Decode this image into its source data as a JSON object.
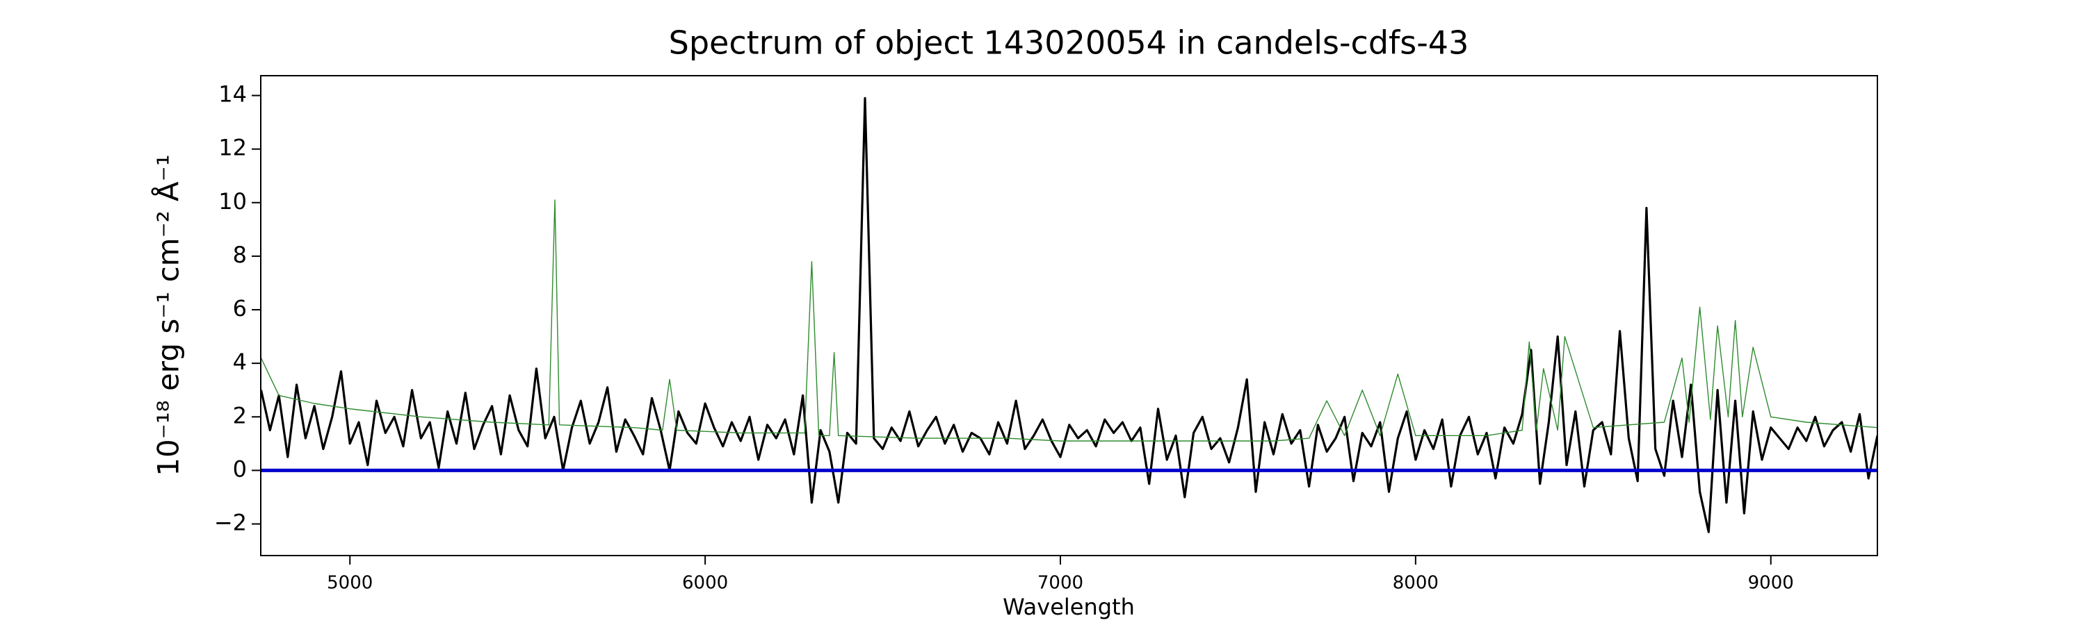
{
  "chart_data": {
    "type": "line",
    "title": "Spectrum of object 143020054 in candels-cdfs-43",
    "xlabel": "Wavelength",
    "ylabel": "10⁻¹⁸ erg s⁻¹ cm⁻² Å⁻¹",
    "xlim": [
      4749,
      9300
    ],
    "ylim": [
      -3.18,
      14.74
    ],
    "xticks": [
      5000,
      6000,
      7000,
      8000,
      9000
    ],
    "yticks": [
      {
        "value": -2,
        "label": "−2"
      },
      0,
      2,
      4,
      6,
      8,
      10,
      12,
      14
    ],
    "series": [
      {
        "color": "#000000",
        "x": [
          4750,
          4775,
          4800,
          4825,
          4850,
          4875,
          4900,
          4925,
          4950,
          4975,
          5000,
          5025,
          5050,
          5075,
          5100,
          5125,
          5150,
          5175,
          5200,
          5225,
          5250,
          5275,
          5300,
          5325,
          5350,
          5375,
          5400,
          5425,
          5450,
          5475,
          5500,
          5525,
          5550,
          5575,
          5600,
          5625,
          5650,
          5675,
          5700,
          5725,
          5750,
          5775,
          5800,
          5825,
          5850,
          5875,
          5900,
          5925,
          5950,
          5975,
          6000,
          6025,
          6050,
          6075,
          6100,
          6125,
          6150,
          6175,
          6200,
          6225,
          6250,
          6275,
          6300,
          6325,
          6350,
          6375,
          6400,
          6425,
          6450,
          6475,
          6500,
          6525,
          6550,
          6575,
          6600,
          6625,
          6650,
          6675,
          6700,
          6725,
          6750,
          6775,
          6800,
          6825,
          6850,
          6875,
          6900,
          6925,
          6950,
          6975,
          7000,
          7025,
          7050,
          7075,
          7100,
          7125,
          7150,
          7175,
          7200,
          7225,
          7250,
          7275,
          7300,
          7325,
          7350,
          7375,
          7400,
          7425,
          7450,
          7475,
          7500,
          7525,
          7550,
          7575,
          7600,
          7625,
          7650,
          7675,
          7700,
          7725,
          7750,
          7775,
          7800,
          7825,
          7850,
          7875,
          7900,
          7925,
          7950,
          7975,
          8000,
          8025,
          8050,
          8075,
          8100,
          8125,
          8150,
          8175,
          8200,
          8225,
          8250,
          8275,
          8300,
          8325,
          8350,
          8375,
          8400,
          8425,
          8450,
          8475,
          8500,
          8525,
          8550,
          8575,
          8600,
          8625,
          8650,
          8675,
          8700,
          8725,
          8750,
          8775,
          8800,
          8825,
          8850,
          8875,
          8900,
          8925,
          8950,
          8975,
          9000,
          9025,
          9050,
          9075,
          9100,
          9125,
          9150,
          9175,
          9200,
          9225,
          9250,
          9275,
          9300
        ],
        "values": [
          3.0,
          1.5,
          2.8,
          0.5,
          3.2,
          1.2,
          2.4,
          0.8,
          2.0,
          3.7,
          1.0,
          1.8,
          0.2,
          2.6,
          1.4,
          2.0,
          0.9,
          3.0,
          1.2,
          1.8,
          0.1,
          2.2,
          1.0,
          2.9,
          0.8,
          1.7,
          2.4,
          0.6,
          2.8,
          1.5,
          0.9,
          3.8,
          1.2,
          2.0,
          0.0,
          1.6,
          2.6,
          1.0,
          1.8,
          3.1,
          0.7,
          1.9,
          1.3,
          0.6,
          2.7,
          1.5,
          0.0,
          2.2,
          1.4,
          1.0,
          2.5,
          1.6,
          0.9,
          1.8,
          1.1,
          2.0,
          0.4,
          1.7,
          1.2,
          1.9,
          0.6,
          2.8,
          -1.2,
          1.5,
          0.7,
          -1.2,
          1.4,
          1.0,
          13.9,
          1.2,
          0.8,
          1.6,
          1.1,
          2.2,
          0.9,
          1.5,
          2.0,
          1.0,
          1.7,
          0.7,
          1.4,
          1.2,
          0.6,
          1.8,
          1.0,
          2.6,
          0.8,
          1.3,
          1.9,
          1.1,
          0.5,
          1.7,
          1.2,
          1.5,
          0.9,
          1.9,
          1.4,
          1.8,
          1.1,
          1.6,
          -0.5,
          2.3,
          0.4,
          1.3,
          -1.0,
          1.4,
          2.0,
          0.8,
          1.2,
          0.3,
          1.6,
          3.4,
          -0.8,
          1.8,
          0.6,
          2.1,
          1.0,
          1.5,
          -0.6,
          1.7,
          0.7,
          1.2,
          2.0,
          -0.4,
          1.4,
          0.9,
          1.8,
          -0.8,
          1.2,
          2.2,
          0.4,
          1.5,
          0.8,
          1.9,
          -0.6,
          1.3,
          2.0,
          0.6,
          1.4,
          -0.3,
          1.6,
          1.0,
          2.1,
          4.5,
          -0.5,
          1.8,
          5.0,
          0.2,
          2.2,
          -0.6,
          1.5,
          1.8,
          0.6,
          5.2,
          1.2,
          -0.4,
          9.8,
          0.8,
          -0.2,
          2.6,
          0.5,
          3.2,
          -0.8,
          -2.3,
          3.0,
          -1.2,
          2.6,
          -1.6,
          2.2,
          0.4,
          1.6,
          1.2,
          0.8,
          1.6,
          1.1,
          2.0,
          0.9,
          1.5,
          1.8,
          0.7,
          2.1,
          -0.3,
          1.3
        ]
      },
      {
        "color": "#2e8b2e",
        "x": [
          4750,
          4800,
          4900,
          5000,
          5200,
          5400,
          5560,
          5577,
          5590,
          5800,
          5880,
          5900,
          5920,
          6100,
          6280,
          6300,
          6320,
          6350,
          6363,
          6375,
          6600,
          6850,
          7000,
          7200,
          7400,
          7600,
          7700,
          7750,
          7800,
          7850,
          7900,
          7950,
          8000,
          8100,
          8200,
          8300,
          8320,
          8340,
          8360,
          8400,
          8420,
          8500,
          8600,
          8700,
          8750,
          8770,
          8800,
          8830,
          8850,
          8880,
          8900,
          8920,
          8950,
          9000,
          9100,
          9300
        ],
        "values": [
          4.2,
          2.8,
          2.5,
          2.3,
          2.0,
          1.8,
          1.7,
          10.1,
          1.7,
          1.6,
          1.5,
          3.4,
          1.5,
          1.4,
          1.4,
          7.8,
          1.3,
          1.3,
          4.4,
          1.3,
          1.2,
          1.2,
          1.1,
          1.1,
          1.1,
          1.1,
          1.2,
          2.6,
          1.3,
          3.0,
          1.3,
          3.6,
          1.3,
          1.3,
          1.3,
          1.5,
          4.8,
          1.5,
          3.8,
          1.5,
          5.0,
          1.6,
          1.7,
          1.8,
          4.2,
          1.8,
          6.1,
          1.9,
          5.4,
          2.0,
          5.6,
          2.0,
          4.6,
          2.0,
          1.8,
          1.6
        ]
      },
      {
        "color": "#0000cc",
        "x": [
          4750,
          9300
        ],
        "values": [
          0,
          0
        ]
      }
    ]
  }
}
